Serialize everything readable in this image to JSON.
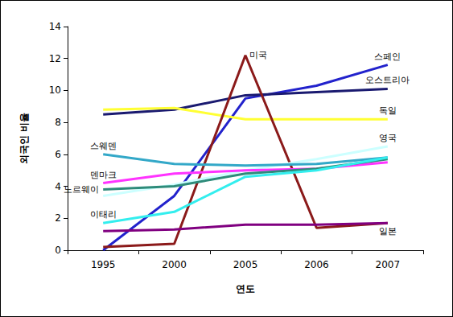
{
  "chart_data": {
    "type": "line",
    "x_label": "연도",
    "y_label": "외국인 비율",
    "categories": [
      "1995",
      "2000",
      "2005",
      "2006",
      "2007"
    ],
    "series": [
      {
        "name": "스페인",
        "color": "#2222cc",
        "values": [
          0,
          3.4,
          9.5,
          10.3,
          11.6
        ]
      },
      {
        "name": "오스트리아",
        "color": "#1a1a70",
        "values": [
          8.5,
          8.8,
          9.7,
          9.9,
          10.1
        ]
      },
      {
        "name": "독일",
        "color": "#ffff33",
        "values": [
          8.8,
          8.9,
          8.2,
          8.2,
          8.2
        ]
      },
      {
        "name": "미국",
        "color": "#8b1a1a",
        "values": [
          0.2,
          0.4,
          12.2,
          1.4,
          1.7
        ]
      },
      {
        "name": "영국",
        "color": "#ccffff",
        "values": [
          3.4,
          4.1,
          5.0,
          5.7,
          6.5
        ]
      },
      {
        "name": "스웨덴",
        "color": "#33a8c8",
        "values": [
          6.0,
          5.4,
          5.3,
          5.4,
          5.8
        ]
      },
      {
        "name": "덴마크",
        "color": "#ff33ff",
        "values": [
          4.2,
          4.8,
          5.0,
          5.1,
          5.5
        ]
      },
      {
        "name": "노르웨이",
        "color": "#2e8b7a",
        "values": [
          3.8,
          4.0,
          4.8,
          5.1,
          5.7
        ]
      },
      {
        "name": "이태리",
        "color": "#33eeee",
        "values": [
          1.7,
          2.4,
          4.6,
          5.0,
          5.8
        ]
      },
      {
        "name": "일본",
        "color": "#800080",
        "values": [
          1.2,
          1.3,
          1.6,
          1.6,
          1.7
        ]
      }
    ],
    "ylim": [
      0,
      14
    ],
    "yticks": [
      0,
      2,
      4,
      6,
      8,
      10,
      12,
      14
    ],
    "grid": false
  }
}
